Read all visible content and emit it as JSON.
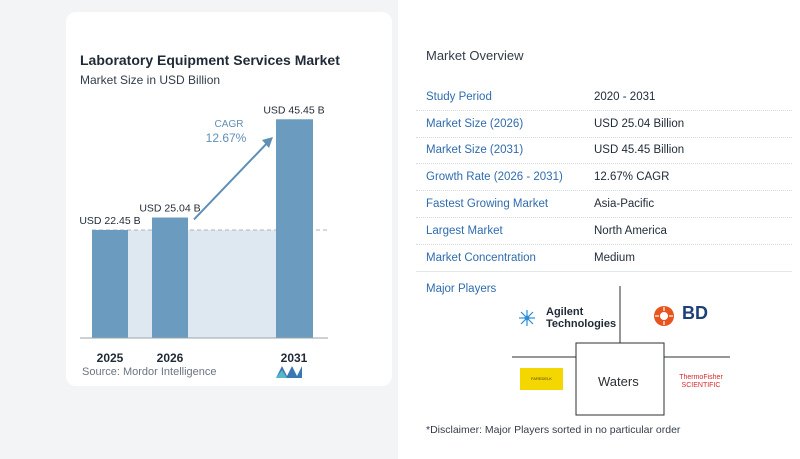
{
  "chart_data": {
    "type": "bar",
    "title": "Laboratory Equipment Services Market",
    "subtitle": "Market Size in USD Billion",
    "categories": [
      "2025",
      "2026",
      "2031"
    ],
    "values": [
      22.45,
      25.04,
      45.45
    ],
    "data_labels": [
      "USD 22.45 B",
      "USD 25.04 B",
      "USD 45.45 B"
    ],
    "cagr_label": "CAGR",
    "cagr_value": "12.67%",
    "ylim": [
      0,
      48
    ],
    "grid": false,
    "colors": {
      "bar": "#6b9cc0",
      "shade": "#dde8f1",
      "baseline": "#a9b4c0",
      "arrow": "#5f8fb6",
      "cagr_text": "#5f8fb6"
    }
  },
  "source": "Source: Mordor Intelligence",
  "overview": {
    "title": "Market Overview",
    "rows": [
      {
        "label": "Study Period",
        "value": "2020 - 2031"
      },
      {
        "label": "Market Size (2026)",
        "value": "USD 25.04 Billion"
      },
      {
        "label": "Market Size (2031)",
        "value": "USD 45.45 Billion"
      },
      {
        "label": "Growth Rate (2026 - 2031)",
        "value": "12.67% CAGR"
      },
      {
        "label": "Fastest Growing Market",
        "value": "Asia-Pacific"
      },
      {
        "label": "Largest Market",
        "value": "North America"
      },
      {
        "label": "Market Concentration",
        "value": "Medium"
      }
    ]
  },
  "players": {
    "title": "Major Players",
    "agilent_line1": "Agilent",
    "agilent_line2": "Technologies",
    "bd": "BD",
    "waters": "Waters",
    "thermo_line1": "ThermoFisher",
    "thermo_line2": "SCIENTIFIC",
    "yellow_box_text": "FAREDELK"
  },
  "disclaimer": "*Disclaimer: Major Players sorted in no particular order"
}
